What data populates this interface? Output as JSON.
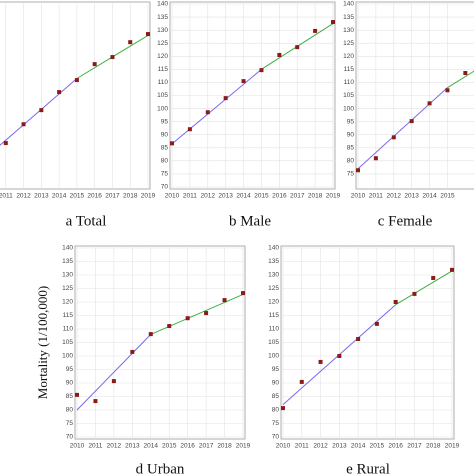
{
  "chart_data": [
    {
      "type": "scatter",
      "title": "a Total",
      "x": [
        2011,
        2012,
        2013,
        2014,
        2015,
        2016,
        2017,
        2018,
        2019
      ],
      "values": [
        86.8,
        94,
        99.4,
        106.3,
        110.9,
        117,
        119.7,
        125.4,
        128.5
      ],
      "color": "#8b1a1a",
      "xlim": [
        2010,
        2019
      ],
      "ylim": [
        70,
        140
      ],
      "xticks": [
        2011,
        2012,
        2013,
        2014,
        2015,
        2016,
        2017,
        2018,
        2019
      ],
      "grid": true,
      "fit": [
        {
          "color": "#7b68ee",
          "x": [
            2010,
            2015
          ],
          "y": [
            82,
            111.5
          ]
        },
        {
          "color": "#3cb043",
          "x": [
            2015,
            2019
          ],
          "y": [
            111.5,
            128
          ]
        }
      ]
    },
    {
      "type": "scatter",
      "title": "b Male",
      "x": [
        2010,
        2011,
        2012,
        2013,
        2014,
        2015,
        2016,
        2017,
        2018,
        2019
      ],
      "values": [
        86.7,
        92.1,
        98.6,
        104,
        110.5,
        114.7,
        120.5,
        123.5,
        129.7,
        133.1
      ],
      "color": "#8b1a1a",
      "xlim": [
        2010,
        2019
      ],
      "ylim": [
        70,
        140
      ],
      "xticks": [
        2010,
        2011,
        2012,
        2013,
        2014,
        2015,
        2016,
        2017,
        2018,
        2019
      ],
      "yticks": [
        70,
        75,
        80,
        85,
        90,
        95,
        100,
        105,
        110,
        115,
        120,
        125,
        130,
        135,
        140
      ],
      "grid": true,
      "fit": [
        {
          "color": "#7b68ee",
          "x": [
            2010,
            2015
          ],
          "y": [
            86.5,
            115
          ]
        },
        {
          "color": "#3cb043",
          "x": [
            2015,
            2019
          ],
          "y": [
            115,
            132.5
          ]
        }
      ]
    },
    {
      "type": "scatter",
      "title": "c Female",
      "x": [
        2010,
        2011,
        2012,
        2013,
        2014,
        2015,
        2016
      ],
      "values": [
        76.4,
        81,
        89,
        95.2,
        102,
        107,
        113.6
      ],
      "color": "#8b1a1a",
      "xlim": [
        2010,
        2019
      ],
      "ylim": [
        70,
        140
      ],
      "xticks": [
        2010,
        2011,
        2012,
        2013,
        2014,
        2015
      ],
      "yticks": [
        75,
        80,
        85,
        90,
        95,
        100,
        105,
        110,
        115,
        120,
        125,
        130,
        135,
        140
      ],
      "grid": true,
      "fit": [
        {
          "color": "#7b68ee",
          "x": [
            2010,
            2015
          ],
          "y": [
            77,
            108
          ]
        },
        {
          "color": "#3cb043",
          "x": [
            2015,
            2019
          ],
          "y": [
            108,
            125
          ]
        }
      ]
    },
    {
      "type": "scatter",
      "title": "d Urban",
      "y_label": "Mortality (1/100,000)",
      "x": [
        2010,
        2011,
        2012,
        2013,
        2014,
        2015,
        2016,
        2017,
        2018,
        2019
      ],
      "values": [
        85.6,
        83.3,
        90.7,
        101.5,
        108.1,
        111.1,
        114,
        115.9,
        120.7,
        123.3
      ],
      "color": "#8b1a1a",
      "xlim": [
        2010,
        2019
      ],
      "ylim": [
        70,
        140
      ],
      "xticks": [
        2010,
        2011,
        2012,
        2013,
        2014,
        2015,
        2016,
        2017,
        2018,
        2019
      ],
      "yticks": [
        70,
        75,
        80,
        85,
        90,
        95,
        100,
        105,
        110,
        115,
        120,
        125,
        130,
        135,
        140
      ],
      "grid": true,
      "fit": [
        {
          "color": "#7b68ee",
          "x": [
            2010,
            2014
          ],
          "y": [
            80,
            108
          ]
        },
        {
          "color": "#3cb043",
          "x": [
            2014,
            2019
          ],
          "y": [
            108,
            122.8
          ]
        }
      ]
    },
    {
      "type": "scatter",
      "title": "e Rural",
      "x": [
        2010,
        2011,
        2012,
        2013,
        2014,
        2015,
        2016,
        2017,
        2018,
        2019
      ],
      "values": [
        80.7,
        90.4,
        97.8,
        100,
        106.3,
        111.9,
        120,
        123,
        128.9,
        131.9
      ],
      "color": "#8b1a1a",
      "xlim": [
        2010,
        2019
      ],
      "ylim": [
        70,
        140
      ],
      "xticks": [
        2010,
        2011,
        2012,
        2013,
        2014,
        2015,
        2016,
        2017,
        2018,
        2019
      ],
      "yticks": [
        70,
        75,
        80,
        85,
        90,
        95,
        100,
        105,
        110,
        115,
        120,
        125,
        130,
        135,
        140
      ],
      "grid": true,
      "fit": [
        {
          "color": "#7b68ee",
          "x": [
            2010,
            2016
          ],
          "y": [
            82,
            119
          ]
        },
        {
          "color": "#3cb043",
          "x": [
            2016,
            2019
          ],
          "y": [
            119,
            131.5
          ]
        }
      ]
    }
  ]
}
